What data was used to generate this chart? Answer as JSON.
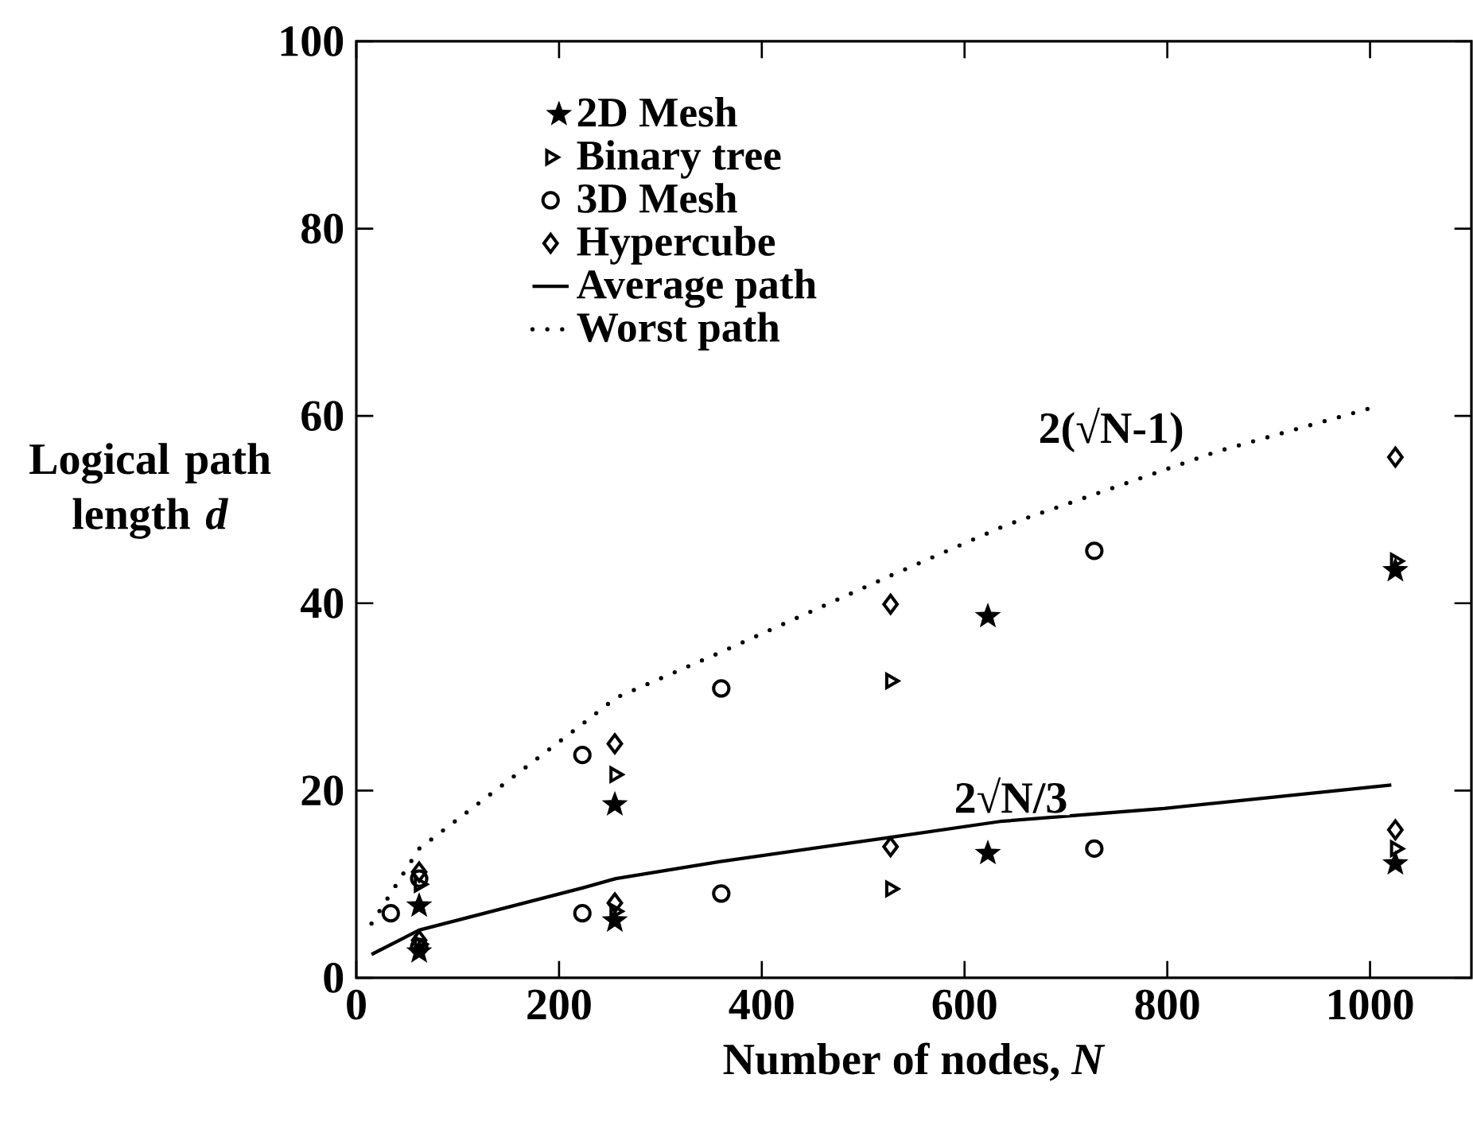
{
  "chart_data": {
    "type": "scatter",
    "xlabel": "Number of nodes, *N*",
    "ylabel": "Logical path length *d*",
    "xlim": [
      0,
      1100
    ],
    "ylim": [
      0,
      100
    ],
    "xticks": [
      0,
      200,
      400,
      600,
      800,
      1000
    ],
    "yticks": [
      0,
      20,
      40,
      60,
      80,
      100
    ],
    "legend": "top left",
    "series": [
      {
        "name": "2D Mesh",
        "color": "#000000",
        "marker": "star",
        "x": [
          62,
          62,
          255,
          255,
          623,
          623,
          1025,
          1025
        ],
        "values": [
          7.7,
          2.8,
          18.5,
          6.1,
          38.6,
          13.3,
          43.5,
          12.2
        ]
      },
      {
        "name": "Binary tree",
        "color": "#000000",
        "marker": "triangle",
        "x": [
          62,
          62,
          255,
          255,
          527,
          527,
          1025,
          1025
        ],
        "values": [
          10.0,
          3.6,
          21.7,
          7.1,
          31.7,
          9.5,
          44.5,
          13.8
        ]
      },
      {
        "name": "3D Mesh",
        "color": "#000000",
        "marker": "circle",
        "x": [
          34,
          62,
          62,
          223,
          223,
          360,
          360,
          728,
          728
        ],
        "values": [
          6.9,
          10.6,
          3.3,
          23.8,
          6.9,
          30.9,
          9.0,
          45.6,
          13.8
        ]
      },
      {
        "name": "Hypercube",
        "color": "#000000",
        "marker": "diamond",
        "x": [
          62,
          62,
          255,
          255,
          527,
          527,
          1025,
          1025
        ],
        "values": [
          11.3,
          4.0,
          25.0,
          8.0,
          39.9,
          14.0,
          55.6,
          15.8
        ]
      },
      {
        "name": "Average path",
        "type": "line",
        "line_style": "solid",
        "color": "#000000",
        "x": [
          15,
          62,
          223,
          256,
          358,
          526,
          635,
          797,
          1021
        ],
        "values": [
          2.5,
          5.1,
          9.6,
          10.6,
          12.4,
          15.0,
          16.7,
          18.1,
          20.6
        ]
      },
      {
        "name": "Worst path",
        "type": "line",
        "line_style": "dotted",
        "color": "#000000",
        "x": [
          15,
          62,
          223,
          256,
          358,
          526,
          640,
          849,
          1006
        ],
        "values": [
          5.8,
          13.8,
          27.1,
          29.9,
          34.7,
          42.9,
          48.3,
          56.2,
          61.0
        ]
      }
    ],
    "annotations": [
      "2(√N-1)",
      "2√N/3"
    ]
  }
}
